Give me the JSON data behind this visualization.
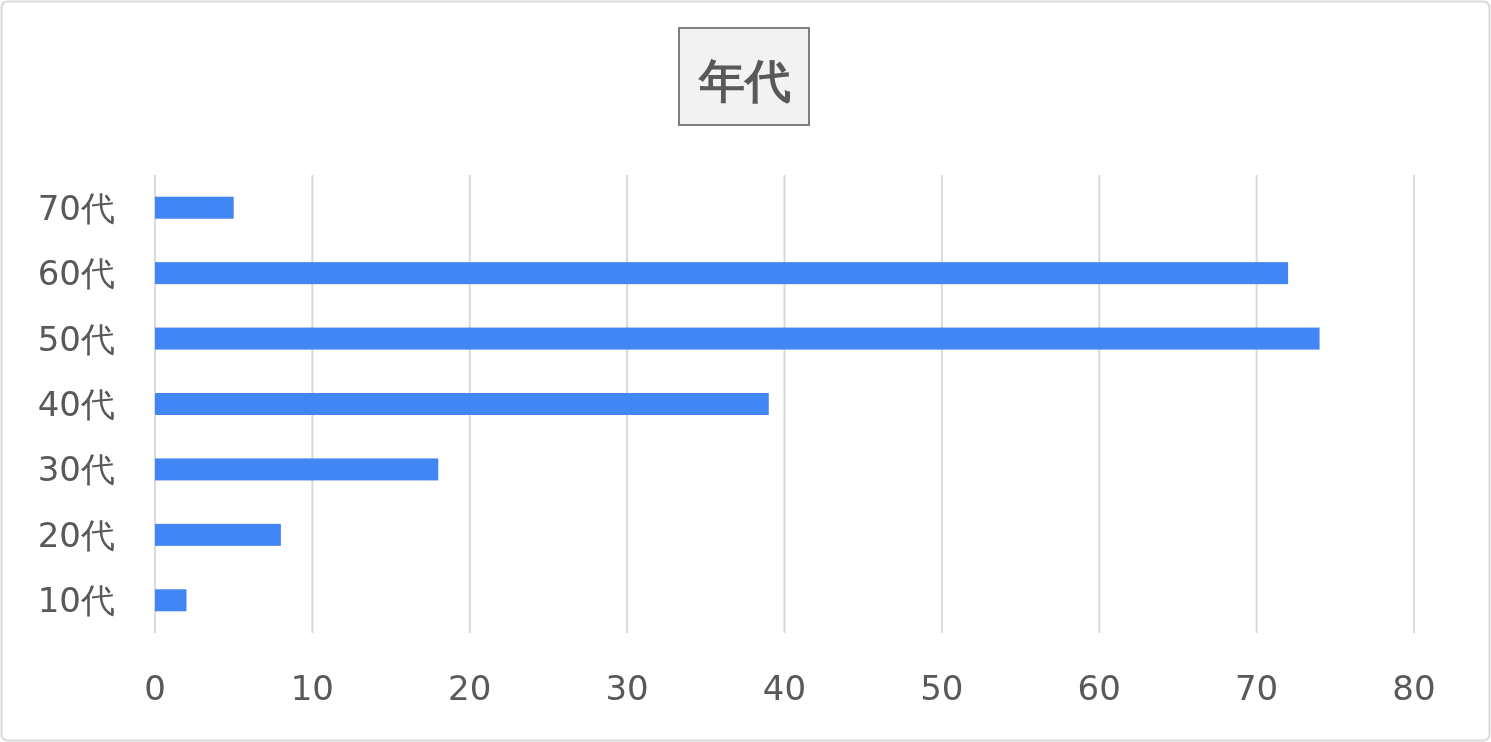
{
  "chart_data": {
    "type": "bar",
    "orientation": "horizontal",
    "title": "年代",
    "categories": [
      "70代",
      "60代",
      "50代",
      "40代",
      "30代",
      "20代",
      "10代"
    ],
    "values": [
      5,
      72,
      74,
      39,
      18,
      8,
      2
    ],
    "color": "#4285f4",
    "xlim": [
      0,
      80
    ],
    "xticks": [
      0,
      10,
      20,
      30,
      40,
      50,
      60,
      70,
      80
    ],
    "grid": "x"
  }
}
